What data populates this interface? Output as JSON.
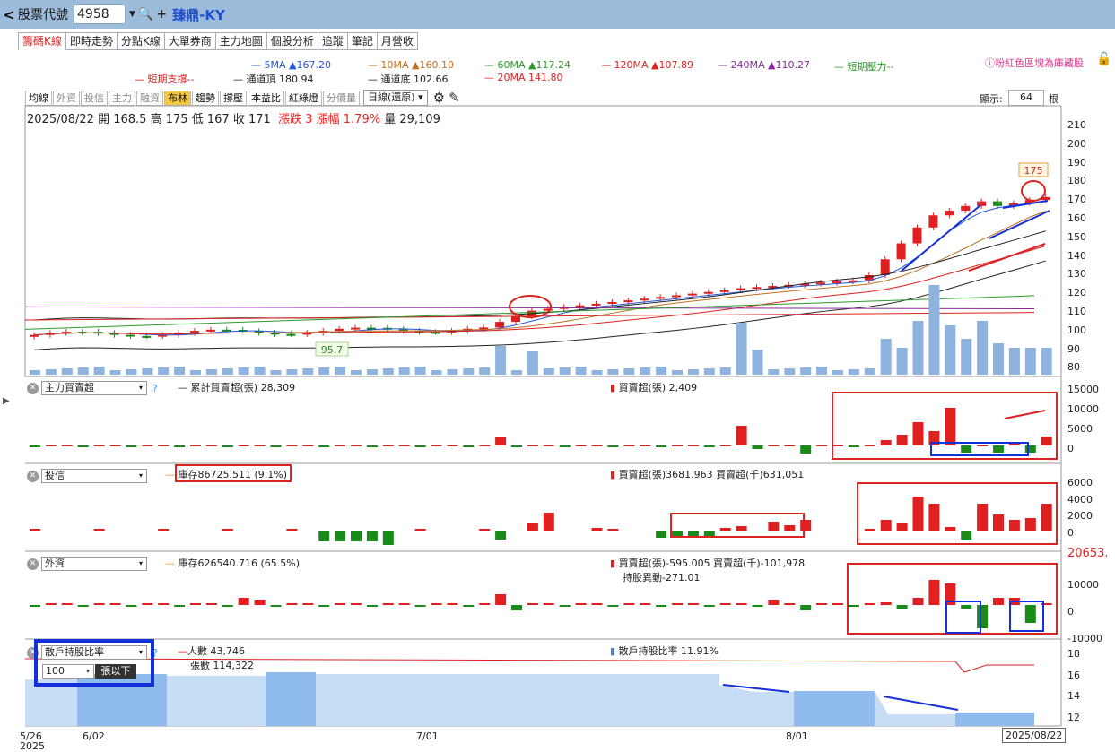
{
  "header": {
    "back": "<",
    "code_label": "股票代號",
    "code_value": "4958",
    "stock_name": "臻鼎-KY"
  },
  "tabs": [
    "籌碼K線",
    "即時走勢",
    "分點K線",
    "大單券商",
    "主力地圖",
    "個股分析",
    "追蹤",
    "筆記",
    "月營收"
  ],
  "ma_legend": {
    "row1": [
      {
        "label": "5MA ▲167.20",
        "color": "#2255dd"
      },
      {
        "label": "10MA ▲160.10",
        "color": "#c07020"
      },
      {
        "label": "60MA ▲117.24",
        "color": "#2a9a2a"
      },
      {
        "label": "120MA ▲107.89",
        "color": "#dd2222"
      },
      {
        "label": "240MA ▲110.27",
        "color": "#8a2a9a"
      },
      {
        "label": "短期壓力--",
        "color": "#2a9a2a"
      }
    ],
    "row2": [
      {
        "label": "短期支撐--",
        "color": "#dd2222"
      },
      {
        "label": "通道頂 180.94",
        "color": "#222222"
      },
      {
        "label": "通道底 102.66",
        "color": "#222222"
      },
      {
        "label": "20MA 141.80",
        "color": "#dd2222"
      }
    ]
  },
  "note": "ⓘ粉紅色區塊為庫藏股",
  "toolbar": {
    "buttons": [
      "均線",
      "外資",
      "投信",
      "主力",
      "融資",
      "布林",
      "趨勢",
      "撐壓",
      "本益比",
      "紅綠燈",
      "分價量"
    ],
    "period": "日線(還原)",
    "show_label": "顯示:",
    "show_value": "64",
    "show_unit": "根"
  },
  "quote": {
    "date": "2025/08/22",
    "open_label": "開",
    "open": "168.5",
    "high_label": "高",
    "high": "175",
    "low_label": "低",
    "low": "167",
    "close_label": "收",
    "close": "171",
    "change": "漲跌 3",
    "pct": "漲幅 1.79%",
    "vol": "量 29,109"
  },
  "price_axis": [
    "210",
    "200",
    "190",
    "180",
    "170",
    "160",
    "150",
    "140",
    "130",
    "120",
    "110",
    "100",
    "90",
    "80"
  ],
  "price_marks": {
    "high_tag": "175",
    "low_tag": "95.7"
  },
  "panels": {
    "main_force": {
      "select": "主力買賣超",
      "cum": "累計買賣超(張) 28,309",
      "bs": "買賣超(張) 2,409",
      "axis": [
        "15000",
        "10000",
        "5000",
        "0"
      ]
    },
    "trust": {
      "select": "投信",
      "stock": "庫存86725.511 (9.1%)",
      "bs": "買賣超(張)3681.963 買賣超(千)631,051",
      "axis": [
        "6000",
        "4000",
        "2000",
        "0"
      ]
    },
    "foreign": {
      "select": "外資",
      "stock": "庫存626540.716 (65.5%)",
      "bs": "買賣超(張)-595.005 買賣超(千)-101,978",
      "hold_change": "持股異動-271.01",
      "axis": [
        "10000",
        "0",
        "-10000"
      ],
      "edge_value": "20653."
    },
    "retail": {
      "select": "散戶持股比率",
      "threshold": "100",
      "threshold_unit": "張以下",
      "people": "人數 43,746",
      "shares": "張數 114,322",
      "ratio": "散戶持股比率 11.91%",
      "axis": [
        "18",
        "16",
        "14",
        "12"
      ]
    }
  },
  "x_axis": {
    "labels": [
      "5/26",
      "6/02",
      "7/01",
      "8/01"
    ],
    "year": "2025",
    "current_date": "2025/08/22"
  }
}
